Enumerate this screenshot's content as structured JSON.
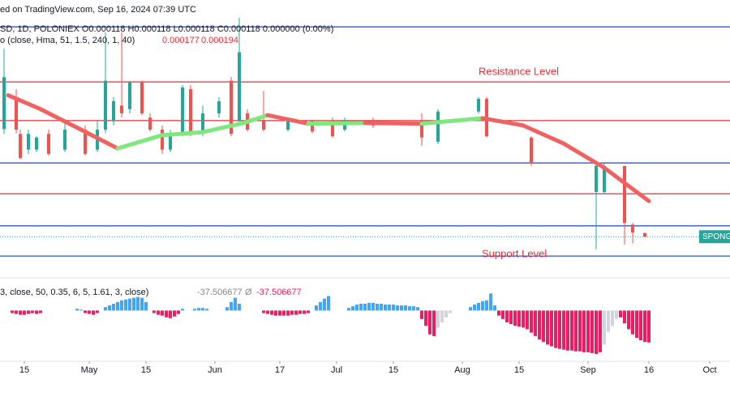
{
  "header": {
    "source": "ed on TradingView.com, Sep 16, 2024 07:39 UTC",
    "symbol": "SD, 1D, POLONIEX  O0.000118  H0.000118  L0.000118  C0.000118  0.000000 (0.00%)",
    "indicator": "o (close, Hma, 51, 1.5, 240, 1, 40)",
    "indicator_values": [
      0.000177,
      0.000194
    ],
    "oscillator": "3, close, 50, 0.35, 6, 5, 1.61, 3, close)",
    "oscillator_values": [
      -37.506677,
      -37.506677
    ],
    "oscillator_symbol": "Ø",
    "resistance": "Resistance Level",
    "support": "Support Level",
    "price_label": "SPONG"
  },
  "chart_data": [
    {
      "type": "candlestick",
      "xlim": [
        "2024-04-09",
        "2024-10-06"
      ],
      "ylim": [
        5e-05,
        0.00048
      ],
      "xticks": [
        {
          "value": "2024-04-15",
          "label": "15"
        },
        {
          "value": "2024-05-01",
          "label": "May"
        },
        {
          "value": "2024-05-15",
          "label": "15"
        },
        {
          "value": "2024-06-01",
          "label": "Jun"
        },
        {
          "value": "2024-06-17",
          "label": "17"
        },
        {
          "value": "2024-07-01",
          "label": "Jul"
        },
        {
          "value": "2024-07-15",
          "label": "15"
        },
        {
          "value": "2024-08-01",
          "label": "Aug"
        },
        {
          "value": "2024-08-15",
          "label": "15"
        },
        {
          "value": "2024-09-01",
          "label": "Sep"
        },
        {
          "value": "2024-09-16",
          "label": "16"
        },
        {
          "value": "2024-10-01",
          "label": "Oct"
        }
      ],
      "up_color": "#26a69a",
      "down_color": "#ef5350",
      "candles": {
        "x": [
          "2024-04-10",
          "2024-04-13",
          "2024-04-14",
          "2024-04-16",
          "2024-04-18",
          "2024-04-21",
          "2024-04-25",
          "2024-04-30",
          "2024-05-03",
          "2024-05-05",
          "2024-05-07",
          "2024-05-09",
          "2024-05-11",
          "2024-05-14",
          "2024-05-16",
          "2024-05-19",
          "2024-05-21",
          "2024-05-24",
          "2024-05-26",
          "2024-05-29",
          "2024-06-02",
          "2024-06-05",
          "2024-06-07",
          "2024-06-09",
          "2024-06-13",
          "2024-06-19",
          "2024-06-25",
          "2024-06-30",
          "2024-07-03",
          "2024-07-10",
          "2024-07-22",
          "2024-07-26",
          "2024-08-05",
          "2024-08-07",
          "2024-08-18",
          "2024-09-03",
          "2024-09-05",
          "2024-09-10",
          "2024-09-12",
          "2024-09-15"
        ],
        "open": [
          0.000296,
          0.000349,
          0.000288,
          0.000262,
          0.000262,
          0.000288,
          0.000262,
          0.000295,
          0.000262,
          0.000295,
          0.000309,
          0.000335,
          0.000329,
          0.000373,
          0.000315,
          0.000295,
          0.000262,
          0.000288,
          0.000362,
          0.000288,
          0.000322,
          0.000376,
          0.000309,
          0.000322,
          0.000309,
          0.000295,
          0.000309,
          0.000311,
          0.000295,
          0.000311,
          0.000309,
          0.000275,
          0.000325,
          0.000346,
          0.000282,
          0.000192,
          0.000192,
          0.000235,
          0.000138,
          0.000124
        ],
        "high": [
          0.000429,
          0.000362,
          0.000295,
          0.000295,
          0.000284,
          0.000295,
          0.000309,
          0.000302,
          0.000309,
          0.000456,
          0.000349,
          0.000456,
          0.000376,
          0.000376,
          0.000322,
          0.000302,
          0.000295,
          0.000369,
          0.000369,
          0.000335,
          0.000349,
          0.000382,
          0.00048,
          0.000329,
          0.000359,
          0.000311,
          0.000311,
          0.000315,
          0.000315,
          0.000315,
          0.000322,
          0.000329,
          0.000349,
          0.000349,
          0.000284,
          0.000242,
          0.000239,
          0.000235,
          0.000141,
          0.000125
        ],
        "low": [
          0.000288,
          0.000289,
          0.000246,
          0.000255,
          0.000258,
          0.000252,
          0.000258,
          0.000252,
          0.000258,
          0.000289,
          0.000302,
          0.000315,
          0.000322,
          0.000319,
          0.000292,
          0.000255,
          0.000258,
          0.000284,
          0.000284,
          0.000284,
          0.000315,
          0.000284,
          0.000302,
          0.000292,
          0.000292,
          0.000292,
          0.000289,
          0.000282,
          0.000292,
          0.000298,
          0.000268,
          0.000271,
          0.000322,
          0.000282,
          0.000235,
          9.7e-05,
          0.000188,
          0.000105,
          0.000107,
          0.000117
        ],
        "close": [
          0.000382,
          0.000295,
          0.000248,
          0.000288,
          0.000282,
          0.000255,
          0.000295,
          0.000255,
          0.000295,
          0.000376,
          0.000342,
          0.000322,
          0.000373,
          0.000322,
          0.000295,
          0.000262,
          0.000288,
          0.000365,
          0.000288,
          0.000322,
          0.000342,
          0.000288,
          0.000423,
          0.000295,
          0.000295,
          0.000309,
          0.000292,
          0.000284,
          0.000311,
          0.000302,
          0.000282,
          0.000325,
          0.000346,
          0.000284,
          0.000239,
          0.000235,
          0.000235,
          0.000141,
          0.000125,
          0.000118
        ]
      },
      "hma": {
        "x": [
          "2024-04-11",
          "2024-04-19",
          "2024-04-29",
          "2024-05-08",
          "2024-05-19",
          "2024-05-29",
          "2024-06-08",
          "2024-06-14",
          "2024-06-24",
          "2024-07-08",
          "2024-07-22",
          "2024-08-06",
          "2024-08-16",
          "2024-08-26",
          "2024-09-05",
          "2024-09-16"
        ],
        "values": [
          0.000352,
          0.000329,
          0.000295,
          0.000264,
          0.000286,
          0.000291,
          0.000306,
          0.000319,
          0.000305,
          0.000306,
          0.000305,
          0.000314,
          0.000302,
          0.000272,
          0.000232,
          0.000177
        ],
        "up_color": "#7ee87e",
        "down_color": "#f06262"
      },
      "levels": [
        {
          "value": 0.000465,
          "color": "#2f55d4"
        },
        {
          "value": 0.000374,
          "color": "#e0313a"
        },
        {
          "value": 0.00031,
          "color": "#e0313a"
        },
        {
          "value": 0.00024,
          "color": "#2f55d4"
        },
        {
          "value": 0.000189,
          "color": "#e0313a"
        },
        {
          "value": 0.000136,
          "color": "#2f55d4"
        },
        {
          "value": 8.6e-05,
          "color": "#2f55d4"
        }
      ],
      "last_price": 0.000118,
      "last_color": "#26a69a"
    },
    {
      "type": "bar",
      "ylim": [
        -52,
        27
      ],
      "pos_color": "#42a5f5",
      "neg_color": "#e91e63",
      "fade_color": "#d1d4dc",
      "x": [
        "2024-04-12",
        "2024-04-13",
        "2024-04-14",
        "2024-04-15",
        "2024-04-16",
        "2024-04-17",
        "2024-04-18",
        "2024-04-19",
        "2024-04-28",
        "2024-04-29",
        "2024-04-30",
        "2024-05-01",
        "2024-05-02",
        "2024-05-03",
        "2024-05-05",
        "2024-05-06",
        "2024-05-07",
        "2024-05-08",
        "2024-05-09",
        "2024-05-10",
        "2024-05-11",
        "2024-05-12",
        "2024-05-13",
        "2024-05-14",
        "2024-05-15",
        "2024-05-17",
        "2024-05-18",
        "2024-05-19",
        "2024-05-20",
        "2024-05-21",
        "2024-05-22",
        "2024-05-23",
        "2024-05-24",
        "2024-05-27",
        "2024-05-28",
        "2024-05-29",
        "2024-05-30",
        "2024-06-04",
        "2024-06-05",
        "2024-06-06",
        "2024-06-07",
        "2024-06-13",
        "2024-06-14",
        "2024-06-15",
        "2024-06-16",
        "2024-06-17",
        "2024-06-18",
        "2024-06-19",
        "2024-06-20",
        "2024-06-21",
        "2024-06-22",
        "2024-06-23",
        "2024-06-24",
        "2024-06-26",
        "2024-06-27",
        "2024-06-28",
        "2024-06-29",
        "2024-07-04",
        "2024-07-05",
        "2024-07-06",
        "2024-07-07",
        "2024-07-08",
        "2024-07-09",
        "2024-07-10",
        "2024-07-11",
        "2024-07-12",
        "2024-07-13",
        "2024-07-14",
        "2024-07-15",
        "2024-07-16",
        "2024-07-17",
        "2024-07-18",
        "2024-07-19",
        "2024-07-20",
        "2024-07-21",
        "2024-07-22",
        "2024-07-23",
        "2024-07-24",
        "2024-07-25",
        "2024-07-26",
        "2024-07-27",
        "2024-07-28",
        "2024-07-29",
        "2024-08-03",
        "2024-08-04",
        "2024-08-05",
        "2024-08-06",
        "2024-08-07",
        "2024-08-08",
        "2024-08-09",
        "2024-08-10",
        "2024-08-11",
        "2024-08-12",
        "2024-08-13",
        "2024-08-14",
        "2024-08-15",
        "2024-08-16",
        "2024-08-17",
        "2024-08-18",
        "2024-08-19",
        "2024-08-20",
        "2024-08-21",
        "2024-08-22",
        "2024-08-23",
        "2024-08-24",
        "2024-08-25",
        "2024-08-26",
        "2024-08-27",
        "2024-08-28",
        "2024-08-29",
        "2024-08-30",
        "2024-08-31",
        "2024-09-01",
        "2024-09-02",
        "2024-09-03",
        "2024-09-04",
        "2024-09-05",
        "2024-09-06",
        "2024-09-07",
        "2024-09-08",
        "2024-09-09",
        "2024-09-10",
        "2024-09-11",
        "2024-09-12",
        "2024-09-13",
        "2024-09-14",
        "2024-09-15",
        "2024-09-16"
      ],
      "values": [
        -3,
        -4,
        -5,
        -5,
        -4,
        -3,
        -4,
        -3,
        2,
        1,
        -3,
        -4,
        -5,
        -3,
        4,
        6,
        8,
        10,
        12,
        13,
        14,
        15,
        16,
        15,
        10,
        -3,
        -5,
        -6,
        -8,
        -9,
        -7,
        -4,
        2,
        2,
        3,
        3,
        2,
        4,
        10,
        15,
        8,
        -3,
        -4,
        -5,
        -6,
        -6,
        -6,
        -6,
        -5,
        -5,
        -4,
        -4,
        -3,
        6,
        10,
        14,
        17,
        3,
        5,
        7,
        8,
        8,
        9,
        9,
        8,
        8,
        7,
        7,
        7,
        6,
        6,
        6,
        5,
        5,
        4,
        -10,
        -18,
        -28,
        -30,
        -20,
        -14,
        -8,
        -3,
        4,
        7,
        9,
        11,
        12,
        20,
        6,
        -6,
        -10,
        -14,
        -16,
        -18,
        -19,
        -20,
        -22,
        -26,
        -30,
        -34,
        -37,
        -40,
        -42,
        -44,
        -45,
        -46,
        -47,
        -47,
        -48,
        -48,
        -49,
        -49,
        -50,
        -51,
        -49,
        -40,
        -25,
        -18,
        -10,
        -8,
        -15,
        -22,
        -28,
        -32,
        -35,
        -37,
        -37.506677
      ]
    }
  ]
}
